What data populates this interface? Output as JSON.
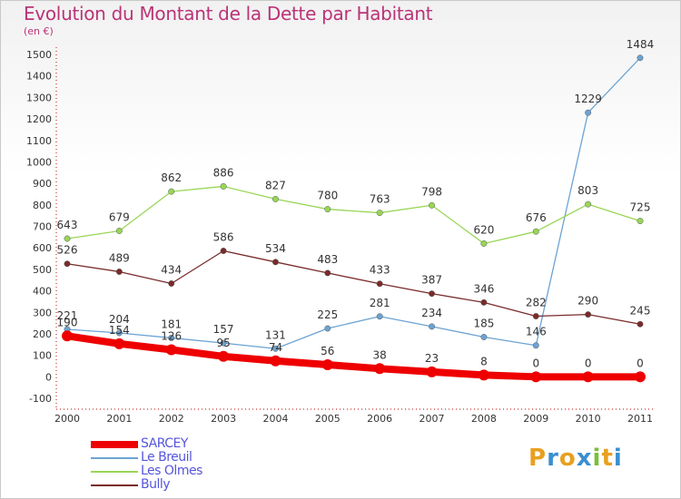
{
  "header": {
    "title": "Evolution du Montant de la Dette par Habitant",
    "subtitle": "(en €)"
  },
  "logo": {
    "text": "Proxiti",
    "colors": [
      "#e8a020",
      "#3a8fd0",
      "#e8a020",
      "#3a8fd0",
      "#7bbf3a",
      "#e8a020",
      "#3a8fd0"
    ]
  },
  "chart_data": {
    "type": "line",
    "title": "Evolution du Montant de la Dette par Habitant",
    "ylabel": "(en €)",
    "xlabel": "",
    "x": [
      "2000",
      "2001",
      "2002",
      "2003",
      "2004",
      "2005",
      "2006",
      "2007",
      "2008",
      "2009",
      "2010",
      "2011"
    ],
    "ylim": [
      -100,
      1500
    ],
    "yticks": [
      -100,
      0,
      100,
      200,
      300,
      400,
      500,
      600,
      700,
      800,
      900,
      1000,
      1100,
      1200,
      1300,
      1400,
      1500
    ],
    "grid": false,
    "legend_position": "bottom-left",
    "series": [
      {
        "name": "SARCEY",
        "color": "#ee0000",
        "width": 8,
        "values": [
          190,
          154,
          126,
          95,
          74,
          56,
          38,
          23,
          8,
          0,
          0,
          0
        ],
        "labels": [
          "190",
          "154",
          "126",
          "95",
          "74",
          "56",
          "38",
          "23",
          "8",
          "0",
          "0",
          "0"
        ]
      },
      {
        "name": "Le Breuil",
        "color": "#6ca3d3",
        "width": 1.3,
        "values": [
          221,
          204,
          181,
          157,
          131,
          225,
          281,
          234,
          185,
          146,
          1229,
          1484
        ],
        "labels": [
          "221",
          "204",
          "181",
          "157",
          "131",
          "225",
          "281",
          "234",
          "185",
          "146",
          "1229",
          "1484"
        ]
      },
      {
        "name": "Les Olmes",
        "color": "#99d655",
        "width": 1.3,
        "values": [
          643,
          679,
          862,
          886,
          827,
          780,
          763,
          798,
          620,
          676,
          803,
          725
        ],
        "labels": [
          "643",
          "679",
          "862",
          "886",
          "827",
          "780",
          "763",
          "798",
          "620",
          "676",
          "803",
          "725"
        ]
      },
      {
        "name": "Bully",
        "color": "#7a2b2b",
        "width": 1.3,
        "values": [
          526,
          489,
          434,
          586,
          534,
          483,
          433,
          387,
          346,
          282,
          290,
          245
        ],
        "labels": [
          "526",
          "489",
          "434",
          "586",
          "534",
          "483",
          "433",
          "387",
          "346",
          "282",
          "290",
          "245"
        ]
      }
    ]
  }
}
